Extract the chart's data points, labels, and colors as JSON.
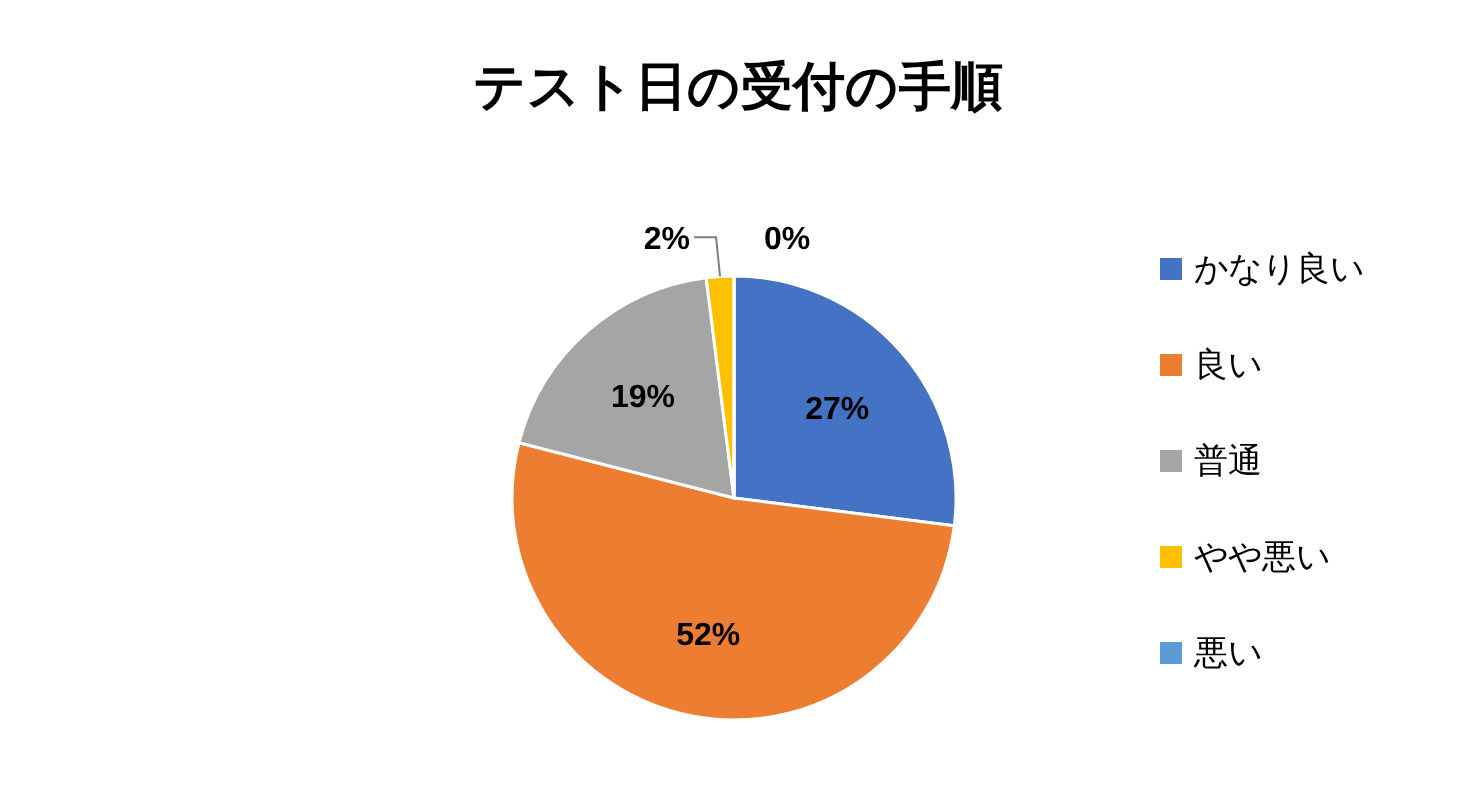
{
  "chart_data": {
    "type": "pie",
    "title": "テスト日の受付の手順",
    "categories": [
      "かなり良い",
      "良い",
      "普通",
      "やや悪い",
      "悪い"
    ],
    "values": [
      27,
      52,
      19,
      2,
      0
    ],
    "colors": [
      "#4472c4",
      "#ed7d31",
      "#a5a5a5",
      "#ffc000",
      "#5b9bd5"
    ],
    "value_labels": [
      "27%",
      "52%",
      "19%",
      "2%",
      "0%"
    ],
    "legend": "right"
  }
}
